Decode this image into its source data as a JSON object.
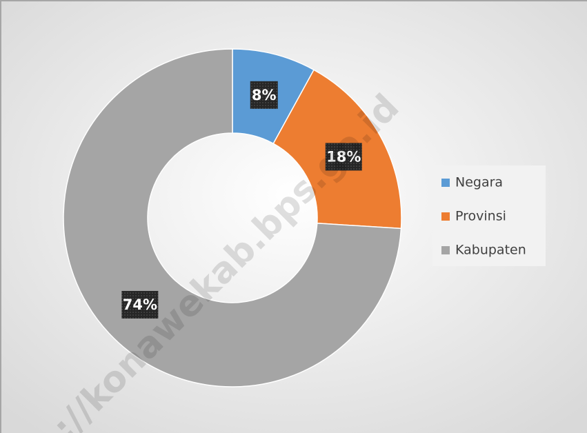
{
  "chart_data": {
    "type": "donut",
    "categories": [
      "Negara",
      "Provinsi",
      "Kabupaten"
    ],
    "values": [
      8,
      18,
      74
    ],
    "value_labels": [
      "8%",
      "18%",
      "74%"
    ],
    "colors": [
      "#5b9bd5",
      "#ed7d31",
      "#a5a5a5"
    ],
    "legend": "right",
    "watermark": "://konawekab.bps.go.id"
  }
}
